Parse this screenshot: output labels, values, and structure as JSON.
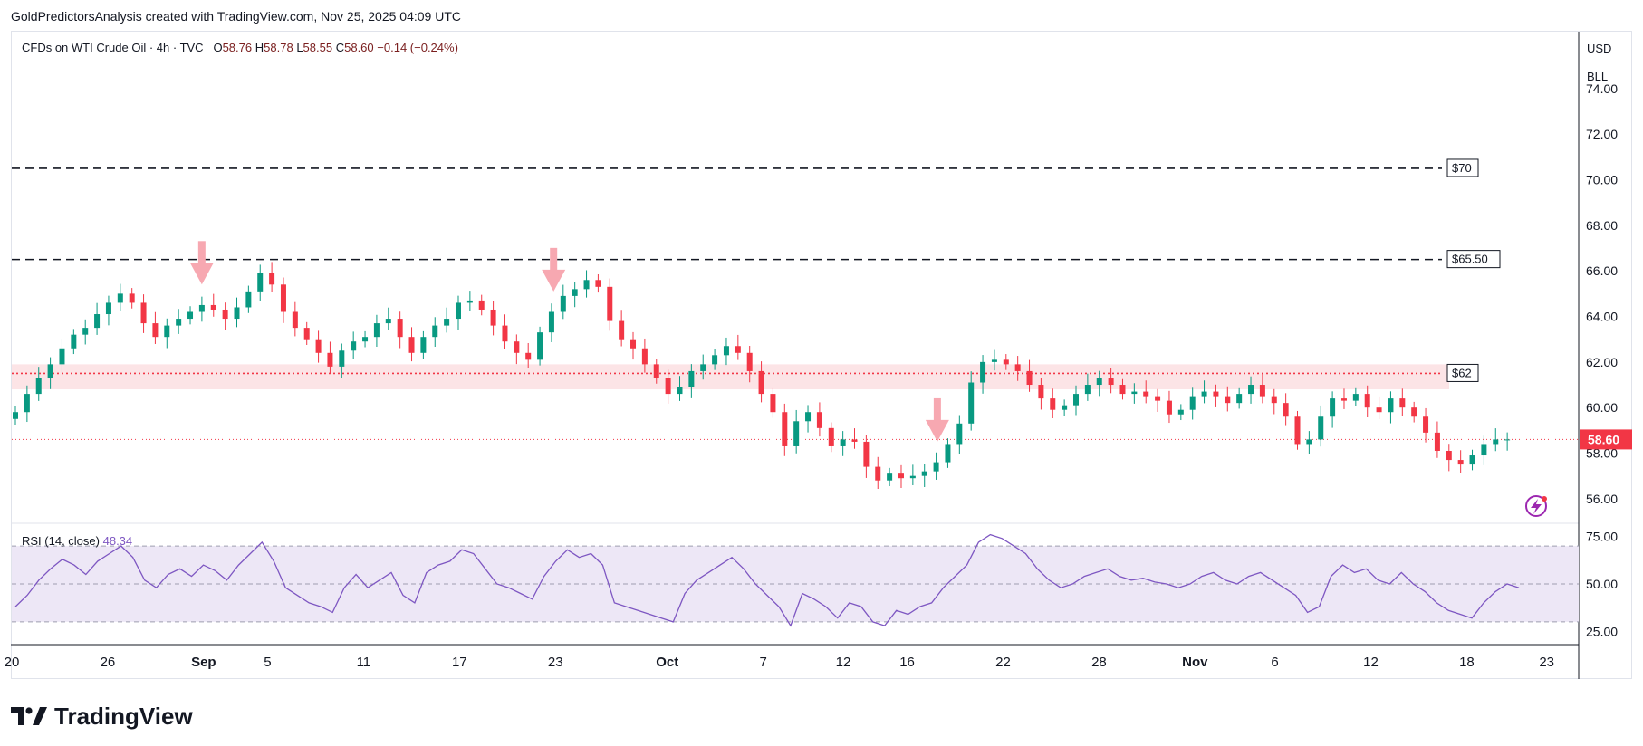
{
  "header": {
    "caption": "GoldPredictorsAnalysis created with TradingView.com, Nov 25, 2025 04:09 UTC"
  },
  "legend": {
    "symbol": "CFDs on WTI Crude Oil · 4h · TVC",
    "o_label": "O",
    "o_value": "58.76",
    "h_label": "H",
    "h_value": "58.78",
    "l_label": "L",
    "l_value": "58.55",
    "c_label": "C",
    "c_value": "58.60",
    "change": "−0.14 (−0.24%)"
  },
  "rsi_legend": {
    "label": "RSI (14, close)",
    "value": "48.34"
  },
  "price_axis": {
    "currency": "USD",
    "unit": "BLL",
    "current_price": "58.60"
  },
  "footer": {
    "brand": "TradingView"
  },
  "colors": {
    "up": "#089981",
    "down": "#f23645",
    "rsi_line": "#7e57c2",
    "rsi_band": "#ede7f6",
    "support_zone": "#fce4e6",
    "arrow": "#f7a8b1"
  },
  "chart_data": [
    {
      "type": "candlestick",
      "title": "CFDs on WTI Crude Oil · 4h · TVC",
      "ylim": [
        55.0,
        76.5
      ],
      "y_ticks": [
        "74.00",
        "72.00",
        "70.00",
        "68.00",
        "66.00",
        "64.00",
        "62.00",
        "60.00",
        "58.00",
        "56.00"
      ],
      "y_tick_values": [
        74,
        72,
        70,
        68,
        66,
        64,
        62,
        60,
        58,
        56
      ],
      "x_ticks": [
        "20",
        "26",
        "Sep",
        "5",
        "11",
        "17",
        "23",
        "Oct",
        "7",
        "12",
        "16",
        "22",
        "28",
        "Nov",
        "6",
        "12",
        "18",
        "23"
      ],
      "x_tick_days": [
        0,
        6,
        12,
        16,
        22,
        28,
        34,
        41,
        47,
        52,
        56,
        62,
        68,
        74,
        79,
        85,
        91,
        96
      ],
      "x_span_days": [
        0,
        98
      ],
      "closes": [
        59.8,
        60.6,
        61.3,
        61.9,
        62.6,
        63.2,
        63.5,
        64.1,
        64.6,
        65.0,
        64.6,
        63.7,
        63.1,
        63.6,
        63.9,
        64.2,
        64.5,
        64.3,
        63.9,
        64.4,
        65.1,
        65.9,
        65.4,
        64.2,
        63.5,
        63.0,
        62.4,
        61.8,
        62.5,
        62.9,
        63.1,
        63.7,
        63.9,
        63.1,
        62.4,
        63.1,
        63.6,
        63.9,
        64.6,
        64.7,
        64.3,
        63.6,
        62.9,
        62.4,
        62.1,
        63.3,
        64.2,
        64.9,
        65.2,
        65.6,
        65.3,
        63.8,
        63.0,
        62.6,
        61.9,
        61.3,
        60.6,
        60.9,
        61.6,
        61.9,
        62.3,
        62.7,
        62.4,
        61.6,
        60.6,
        59.8,
        58.3,
        59.4,
        59.8,
        59.1,
        58.3,
        58.6,
        58.5,
        57.4,
        56.8,
        57.1,
        56.9,
        57.0,
        57.2,
        57.6,
        58.4,
        59.3,
        61.1,
        62.0,
        62.1,
        61.9,
        61.6,
        61.0,
        60.4,
        59.9,
        60.1,
        60.6,
        61.0,
        61.3,
        61.0,
        60.6,
        60.7,
        60.5,
        60.3,
        59.7,
        59.9,
        60.5,
        60.7,
        60.5,
        60.2,
        60.6,
        61.0,
        60.5,
        60.2,
        59.6,
        58.4,
        58.6,
        59.6,
        60.4,
        60.3,
        60.6,
        60.0,
        59.8,
        60.4,
        60.0,
        59.6,
        58.9,
        58.1,
        57.7,
        57.5,
        57.9,
        58.4,
        58.6,
        58.6
      ],
      "current_price": 58.6,
      "levels": [
        {
          "label": "$70",
          "value": 70.5,
          "style": "dashed"
        },
        {
          "label": "$65.50",
          "value": 66.5,
          "style": "dashed"
        },
        {
          "label": "$62",
          "value": 61.5,
          "style": "dotted",
          "zone": [
            60.8,
            61.9
          ]
        }
      ],
      "arrows_at_days": [
        12,
        34,
        58
      ]
    },
    {
      "type": "line",
      "title": "RSI (14, close)",
      "ylim": [
        18,
        82
      ],
      "y_ticks": [
        "75.00",
        "50.00",
        "25.00"
      ],
      "y_tick_values": [
        75,
        50,
        25
      ],
      "bands": [
        70,
        30
      ],
      "mid": 50,
      "values": [
        38,
        44,
        52,
        58,
        63,
        60,
        55,
        62,
        66,
        70,
        64,
        52,
        48,
        55,
        58,
        54,
        60,
        57,
        52,
        60,
        66,
        72,
        62,
        48,
        44,
        40,
        38,
        35,
        48,
        55,
        48,
        52,
        56,
        44,
        40,
        56,
        60,
        62,
        68,
        66,
        58,
        50,
        48,
        45,
        42,
        54,
        62,
        68,
        64,
        66,
        60,
        40,
        38,
        36,
        34,
        32,
        30,
        45,
        52,
        56,
        60,
        64,
        58,
        50,
        44,
        38,
        28,
        45,
        42,
        38,
        32,
        40,
        38,
        30,
        28,
        36,
        34,
        38,
        40,
        48,
        54,
        60,
        72,
        76,
        74,
        70,
        66,
        58,
        52,
        48,
        50,
        54,
        56,
        58,
        54,
        52,
        53,
        51,
        50,
        48,
        50,
        54,
        56,
        52,
        50,
        54,
        56,
        52,
        48,
        44,
        35,
        38,
        54,
        60,
        56,
        58,
        52,
        50,
        56,
        50,
        46,
        40,
        36,
        34,
        32,
        40,
        46,
        50,
        48
      ]
    }
  ]
}
